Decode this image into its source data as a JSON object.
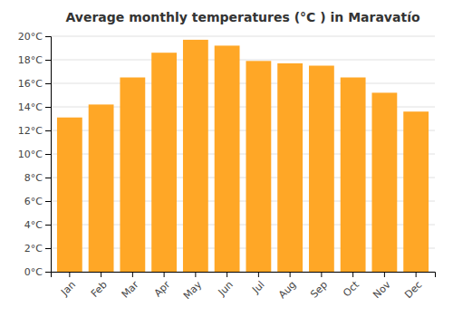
{
  "chart_data": {
    "type": "bar",
    "title": "Average monthly temperatures (°C ) in Maravatío",
    "categories": [
      "Jan",
      "Feb",
      "Mar",
      "Apr",
      "May",
      "Jun",
      "Jul",
      "Aug",
      "Sep",
      "Oct",
      "Nov",
      "Dec"
    ],
    "values": [
      13.1,
      14.2,
      16.5,
      18.6,
      19.7,
      19.2,
      17.9,
      17.7,
      17.5,
      16.5,
      15.2,
      13.6
    ],
    "color": "#FFA726",
    "ylim": [
      0,
      20
    ],
    "yticks": [
      {
        "value": 0,
        "label": "0°C"
      },
      {
        "value": 2,
        "label": "2°C"
      },
      {
        "value": 4,
        "label": "4°C"
      },
      {
        "value": 6,
        "label": "6°C"
      },
      {
        "value": 8,
        "label": "8°C"
      },
      {
        "value": 10,
        "label": "10°C"
      },
      {
        "value": 12,
        "label": "12°C"
      },
      {
        "value": 14,
        "label": "14°C"
      },
      {
        "value": 16,
        "label": "16°C"
      },
      {
        "value": 18,
        "label": "18°C"
      },
      {
        "value": 20,
        "label": "20°C"
      }
    ],
    "grid": true
  }
}
